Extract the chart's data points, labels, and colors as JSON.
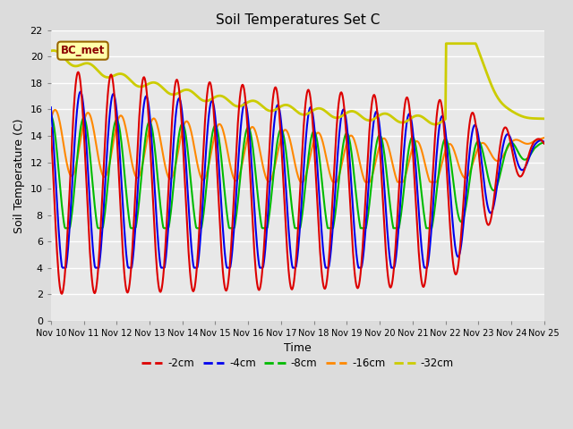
{
  "title": "Soil Temperatures Set C",
  "xlabel": "Time",
  "ylabel": "Soil Temperature (C)",
  "ylim": [
    0,
    22
  ],
  "xlim": [
    0,
    360
  ],
  "annotation": "BC_met",
  "legend_labels": [
    "-2cm",
    "-4cm",
    "-8cm",
    "-16cm",
    "-32cm"
  ],
  "legend_colors": [
    "#dd0000",
    "#0000ee",
    "#00bb00",
    "#ff8800",
    "#cccc00"
  ],
  "background_color": "#dcdcdc",
  "plot_bg_color": "#e8e8e8",
  "grid_color": "#ffffff",
  "title_fontsize": 11,
  "axis_fontsize": 8,
  "label_fontsize": 9
}
